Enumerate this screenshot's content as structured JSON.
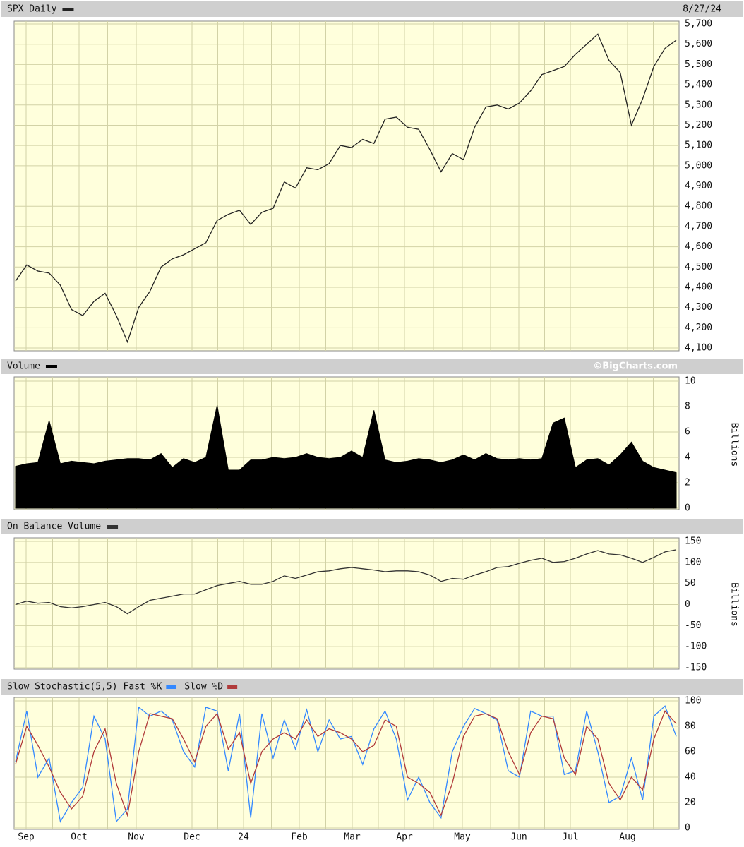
{
  "date": "8/27/24",
  "credit": "©BigCharts.com",
  "x_labels": [
    "Sep",
    "Oct",
    "Nov",
    "Dec",
    "24",
    "Feb",
    "Mar",
    "Apr",
    "May",
    "Jun",
    "Jul",
    "Aug"
  ],
  "chart_data": [
    {
      "type": "line",
      "title": "SPX Daily",
      "ylim": [
        4100,
        5700
      ],
      "yticks": [
        {
          "value": 4100,
          "label": "4,100"
        },
        {
          "value": 4200,
          "label": "4,200"
        },
        {
          "value": 4300,
          "label": "4,300"
        },
        {
          "value": 4400,
          "label": "4,400"
        },
        {
          "value": 4500,
          "label": "4,500"
        },
        {
          "value": 4600,
          "label": "4,600"
        },
        {
          "value": 4700,
          "label": "4,700"
        },
        {
          "value": 4800,
          "label": "4,800"
        },
        {
          "value": 4900,
          "label": "4,900"
        },
        {
          "value": 5000,
          "label": "5,000"
        },
        {
          "value": 5100,
          "label": "5,100"
        },
        {
          "value": 5200,
          "label": "5,200"
        },
        {
          "value": 5300,
          "label": "5,300"
        },
        {
          "value": 5400,
          "label": "5,400"
        },
        {
          "value": 5500,
          "label": "5,500"
        },
        {
          "value": 5600,
          "label": "5,600"
        },
        {
          "value": 5700,
          "label": "5,700"
        }
      ],
      "series": [
        {
          "color": "#222222",
          "values": [
            4430,
            4510,
            4480,
            4470,
            4410,
            4290,
            4260,
            4330,
            4370,
            4260,
            4130,
            4300,
            4380,
            4500,
            4540,
            4560,
            4590,
            4620,
            4730,
            4760,
            4780,
            4710,
            4770,
            4790,
            4920,
            4890,
            4990,
            4980,
            5010,
            5100,
            5090,
            5130,
            5110,
            5230,
            5240,
            5190,
            5180,
            5080,
            4970,
            5060,
            5030,
            5190,
            5290,
            5300,
            5280,
            5310,
            5370,
            5450,
            5470,
            5490,
            5550,
            5600,
            5650,
            5520,
            5460,
            5200,
            5330,
            5490,
            5580,
            5620
          ]
        }
      ]
    },
    {
      "type": "area",
      "title": "Volume",
      "axis_label": "Billions",
      "ylim": [
        0,
        10
      ],
      "yticks": [
        0,
        2,
        4,
        6,
        8,
        10
      ],
      "series": [
        {
          "color": "#000000",
          "values": [
            3.3,
            3.5,
            3.6,
            6.9,
            3.5,
            3.7,
            3.6,
            3.5,
            3.7,
            3.8,
            3.9,
            3.9,
            3.8,
            4.3,
            3.2,
            3.9,
            3.6,
            4.0,
            8.1,
            3.0,
            3.0,
            3.8,
            3.8,
            4.0,
            3.9,
            4.0,
            4.3,
            4.0,
            3.9,
            4.0,
            4.5,
            4.0,
            7.7,
            3.8,
            3.6,
            3.7,
            3.9,
            3.8,
            3.6,
            3.8,
            4.2,
            3.8,
            4.3,
            3.9,
            3.8,
            3.9,
            3.8,
            3.9,
            6.7,
            7.1,
            3.2,
            3.8,
            3.9,
            3.4,
            4.2,
            5.2,
            3.7,
            3.2,
            3.0,
            2.8
          ]
        }
      ]
    },
    {
      "type": "line",
      "title": "On Balance Volume",
      "axis_label": "Billions",
      "ylim": [
        -150,
        150
      ],
      "yticks": [
        -150,
        -100,
        -50,
        0,
        50,
        100,
        150
      ],
      "series": [
        {
          "color": "#333333",
          "values": [
            0,
            8,
            3,
            5,
            -5,
            -8,
            -5,
            0,
            5,
            -5,
            -22,
            -5,
            10,
            15,
            20,
            25,
            25,
            35,
            45,
            50,
            55,
            48,
            48,
            55,
            68,
            62,
            70,
            78,
            80,
            85,
            88,
            85,
            82,
            78,
            80,
            80,
            78,
            70,
            55,
            62,
            60,
            70,
            78,
            88,
            90,
            98,
            105,
            110,
            100,
            102,
            110,
            120,
            128,
            120,
            118,
            110,
            100,
            112,
            125,
            130
          ]
        }
      ]
    },
    {
      "type": "line",
      "title": "Slow Stochastic(5,5)",
      "ylim": [
        0,
        100
      ],
      "yticks": [
        0,
        20,
        40,
        60,
        80,
        100
      ],
      "series": [
        {
          "name": "Fast %K",
          "color": "#3388ff",
          "values": [
            52,
            92,
            40,
            55,
            5,
            20,
            32,
            88,
            70,
            5,
            15,
            95,
            88,
            92,
            85,
            60,
            48,
            95,
            92,
            45,
            90,
            8,
            90,
            55,
            85,
            62,
            93,
            60,
            85,
            70,
            72,
            50,
            78,
            92,
            70,
            22,
            40,
            20,
            8,
            60,
            80,
            94,
            90,
            85,
            45,
            40,
            92,
            88,
            88,
            42,
            45,
            92,
            60,
            20,
            25,
            55,
            22,
            88,
            96,
            72
          ]
        },
        {
          "name": "Slow %D",
          "color": "#b03a3a",
          "values": [
            50,
            80,
            65,
            48,
            28,
            15,
            25,
            60,
            78,
            35,
            10,
            60,
            90,
            88,
            86,
            70,
            52,
            80,
            90,
            62,
            75,
            35,
            60,
            70,
            75,
            70,
            85,
            72,
            78,
            75,
            70,
            60,
            65,
            85,
            80,
            40,
            35,
            28,
            10,
            35,
            72,
            88,
            90,
            86,
            60,
            42,
            75,
            88,
            86,
            55,
            42,
            80,
            70,
            35,
            22,
            40,
            30,
            70,
            92,
            82
          ]
        }
      ]
    }
  ]
}
